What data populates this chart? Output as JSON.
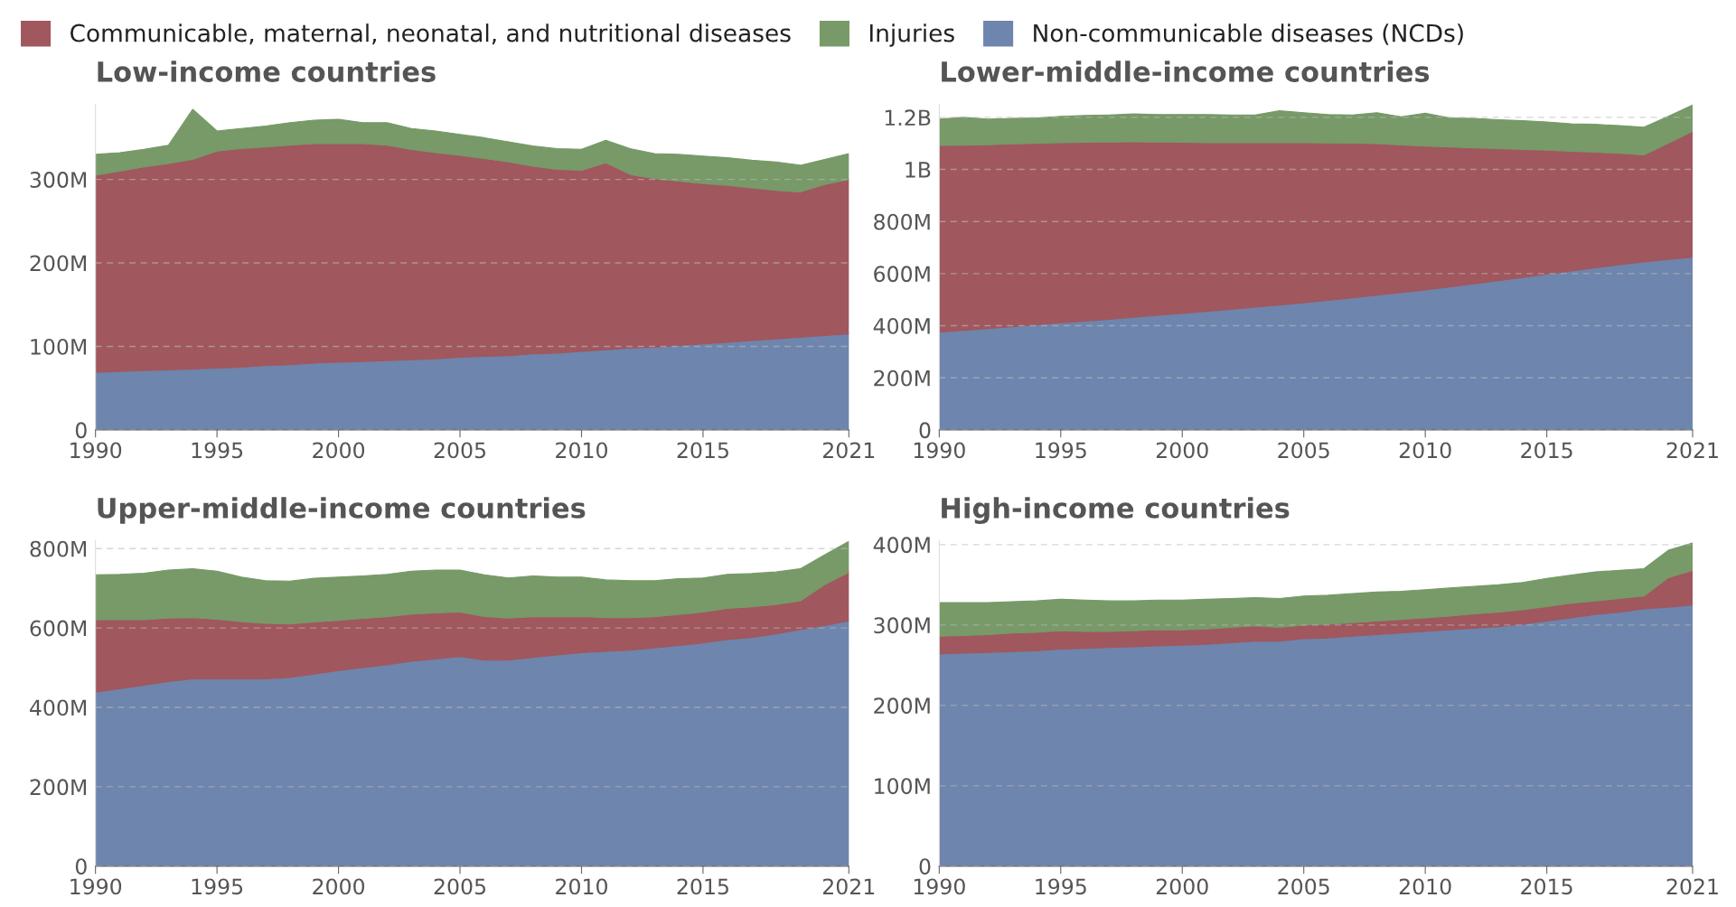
{
  "chart_data": [
    {
      "type": "area",
      "stacked": true,
      "title": "Low-income countries",
      "legend": "top",
      "grid": "y",
      "line_style": "dashed",
      "x": [
        1990,
        1991,
        1992,
        1993,
        1994,
        1995,
        1996,
        1997,
        1998,
        1999,
        2000,
        2001,
        2002,
        2003,
        2004,
        2005,
        2006,
        2007,
        2008,
        2009,
        2010,
        2011,
        2012,
        2013,
        2014,
        2015,
        2016,
        2017,
        2018,
        2019,
        2020,
        2021
      ],
      "xlim": [
        1990,
        2021
      ],
      "xticks": [
        1990,
        1995,
        2000,
        2005,
        2010,
        2015,
        2021
      ],
      "ylim": [
        0,
        390000000.0
      ],
      "yticks": [
        {
          "value": 0,
          "label": "0"
        },
        {
          "value": 100000000.0,
          "label": "100M"
        },
        {
          "value": 200000000.0,
          "label": "200M"
        },
        {
          "value": 300000000.0,
          "label": "300M"
        }
      ],
      "series": [
        {
          "name": "Non-communicable diseases (NCDs)",
          "color": "#6e85ad",
          "values": [
            69000000.0,
            70000000.0,
            71000000.0,
            72000000.0,
            73000000.0,
            74000000.0,
            75000000.0,
            77000000.0,
            78000000.0,
            80000000.0,
            81000000.0,
            82000000.0,
            83000000.0,
            84000000.0,
            85000000.0,
            87000000.0,
            88000000.0,
            89000000.0,
            91000000.0,
            92000000.0,
            94000000.0,
            96000000.0,
            98000000.0,
            99000000.0,
            101000000.0,
            103000000.0,
            105000000.0,
            107000000.0,
            109000000.0,
            111000000.0,
            113000000.0,
            115000000.0
          ]
        },
        {
          "name": "Communicable, maternal, neonatal, and nutritional diseases",
          "color": "#a0575e",
          "values": [
            236000000.0,
            240000000.0,
            244000000.0,
            247000000.0,
            251000000.0,
            260000000.0,
            262000000.0,
            262000000.0,
            263000000.0,
            263000000.0,
            262000000.0,
            261000000.0,
            258000000.0,
            252000000.0,
            247000000.0,
            242000000.0,
            237000000.0,
            232000000.0,
            225000000.0,
            220000000.0,
            217000000.0,
            224000000.0,
            208000000.0,
            202000000.0,
            197000000.0,
            192000000.0,
            188000000.0,
            183000000.0,
            178000000.0,
            174000000.0,
            181000000.0,
            185000000.0
          ]
        },
        {
          "name": "Injuries",
          "color": "#779a68",
          "values": [
            25000000.0,
            22000000.0,
            21000000.0,
            22000000.0,
            60000000.0,
            24000000.0,
            24000000.0,
            25000000.0,
            27000000.0,
            28000000.0,
            29000000.0,
            25000000.0,
            27000000.0,
            25000000.0,
            26000000.0,
            25000000.0,
            25000000.0,
            24000000.0,
            24000000.0,
            25000000.0,
            25000000.0,
            27000000.0,
            31000000.0,
            30000000.0,
            32000000.0,
            33000000.0,
            33000000.0,
            33000000.0,
            34000000.0,
            32000000.0,
            30000000.0,
            31000000.0
          ]
        }
      ]
    },
    {
      "type": "area",
      "stacked": true,
      "title": "Lower-middle-income countries",
      "grid": "y",
      "line_style": "dashed",
      "x": [
        1990,
        1991,
        1992,
        1993,
        1994,
        1995,
        1996,
        1997,
        1998,
        1999,
        2000,
        2001,
        2002,
        2003,
        2004,
        2005,
        2006,
        2007,
        2008,
        2009,
        2010,
        2011,
        2012,
        2013,
        2014,
        2015,
        2016,
        2017,
        2018,
        2019,
        2020,
        2021
      ],
      "xlim": [
        1990,
        2021
      ],
      "xticks": [
        1990,
        1995,
        2000,
        2005,
        2010,
        2015,
        2021
      ],
      "ylim": [
        0,
        1250000000.0
      ],
      "yticks": [
        {
          "value": 0,
          "label": "0"
        },
        {
          "value": 200000000.0,
          "label": "200M"
        },
        {
          "value": 400000000.0,
          "label": "400M"
        },
        {
          "value": 600000000.0,
          "label": "600M"
        },
        {
          "value": 800000000.0,
          "label": "800M"
        },
        {
          "value": 1000000000.0,
          "label": "1B"
        },
        {
          "value": 1200000000.0,
          "label": "1.2B"
        }
      ],
      "series": [
        {
          "color": "#6e85ad",
          "values": [
            375000000.0,
            382000000.0,
            389000000.0,
            396000000.0,
            404000000.0,
            411000000.0,
            418000000.0,
            425000000.0,
            432000000.0,
            440000000.0,
            447000000.0,
            455000000.0,
            463000000.0,
            471000000.0,
            479000000.0,
            488000000.0,
            497000000.0,
            507000000.0,
            517000000.0,
            527000000.0,
            537000000.0,
            549000000.0,
            561000000.0,
            573000000.0,
            585000000.0,
            598000000.0,
            610000000.0,
            622000000.0,
            634000000.0,
            645000000.0,
            654000000.0,
            663000000.0
          ]
        },
        {
          "color": "#a0575e",
          "values": [
            717000000.0,
            711000000.0,
            706000000.0,
            702000000.0,
            696000000.0,
            692000000.0,
            686000000.0,
            680000000.0,
            674000000.0,
            665000000.0,
            657000000.0,
            648000000.0,
            640000000.0,
            632000000.0,
            624000000.0,
            615000000.0,
            605000000.0,
            594000000.0,
            582000000.0,
            567000000.0,
            553000000.0,
            537000000.0,
            522000000.0,
            507000000.0,
            492000000.0,
            476000000.0,
            460000000.0,
            444000000.0,
            428000000.0,
            411000000.0,
            447000000.0,
            483000000.0
          ]
        },
        {
          "color": "#779a68",
          "values": [
            101000000.0,
            107000000.0,
            98000000.0,
            98000000.0,
            98000000.0,
            101000000.0,
            103000000.0,
            104000000.0,
            107000000.0,
            106000000.0,
            107000000.0,
            108000000.0,
            106000000.0,
            106000000.0,
            122000000.0,
            115000000.0,
            109000000.0,
            108000000.0,
            119000000.0,
            108000000.0,
            126000000.0,
            112000000.0,
            113000000.0,
            111000000.0,
            110000000.0,
            108000000.0,
            105000000.0,
            107000000.0,
            106000000.0,
            106000000.0,
            103000000.0,
            101000000.0
          ]
        }
      ]
    },
    {
      "type": "area",
      "stacked": true,
      "title": "Upper-middle-income countries",
      "grid": "y",
      "line_style": "dashed",
      "x": [
        1990,
        1991,
        1992,
        1993,
        1994,
        1995,
        1996,
        1997,
        1998,
        1999,
        2000,
        2001,
        2002,
        2003,
        2004,
        2005,
        2006,
        2007,
        2008,
        2009,
        2010,
        2011,
        2012,
        2013,
        2014,
        2015,
        2016,
        2017,
        2018,
        2019,
        2020,
        2021
      ],
      "xlim": [
        1990,
        2021
      ],
      "xticks": [
        1990,
        1995,
        2000,
        2005,
        2010,
        2015,
        2021
      ],
      "ylim": [
        0,
        820000000.0
      ],
      "yticks": [
        {
          "value": 0,
          "label": "0"
        },
        {
          "value": 200000000.0,
          "label": "200M"
        },
        {
          "value": 400000000.0,
          "label": "400M"
        },
        {
          "value": 600000000.0,
          "label": "600M"
        },
        {
          "value": 800000000.0,
          "label": "800M"
        }
      ],
      "series": [
        {
          "color": "#6e85ad",
          "values": [
            438000000.0,
            447000000.0,
            456000000.0,
            465000000.0,
            472000000.0,
            472000000.0,
            472000000.0,
            472000000.0,
            475000000.0,
            484000000.0,
            493000000.0,
            500000000.0,
            507000000.0,
            516000000.0,
            522000000.0,
            528000000.0,
            519000000.0,
            519000000.0,
            526000000.0,
            532000000.0,
            538000000.0,
            541000000.0,
            544000000.0,
            550000000.0,
            556000000.0,
            562000000.0,
            571000000.0,
            576000000.0,
            585000000.0,
            596000000.0,
            606000000.0,
            618000000.0
          ]
        },
        {
          "color": "#a0575e",
          "values": [
            183000000.0,
            174000000.0,
            165000000.0,
            160000000.0,
            154000000.0,
            150000000.0,
            144000000.0,
            140000000.0,
            135000000.0,
            131000000.0,
            126000000.0,
            124000000.0,
            121000000.0,
            119000000.0,
            116000000.0,
            112000000.0,
            110000000.0,
            106000000.0,
            102000000.0,
            96000000.0,
            91000000.0,
            85000000.0,
            82000000.0,
            78000000.0,
            78000000.0,
            78000000.0,
            78000000.0,
            77000000.0,
            74000000.0,
            72000000.0,
            103000000.0,
            122000000.0
          ]
        },
        {
          "color": "#779a68",
          "values": [
            113000000.0,
            114000000.0,
            117000000.0,
            121000000.0,
            123000000.0,
            121000000.0,
            112000000.0,
            107000000.0,
            108000000.0,
            110000000.0,
            109000000.0,
            107000000.0,
            107000000.0,
            108000000.0,
            108000000.0,
            106000000.0,
            105000000.0,
            101000000.0,
            103000000.0,
            100000000.0,
            99000000.0,
            95000000.0,
            93000000.0,
            91000000.0,
            90000000.0,
            86000000.0,
            86000000.0,
            84000000.0,
            82000000.0,
            81000000.0,
            75000000.0,
            78000000.0
          ]
        }
      ]
    },
    {
      "type": "area",
      "stacked": true,
      "title": "High-income countries",
      "grid": "y",
      "line_style": "dashed",
      "x": [
        1990,
        1991,
        1992,
        1993,
        1994,
        1995,
        1996,
        1997,
        1998,
        1999,
        2000,
        2001,
        2002,
        2003,
        2004,
        2005,
        2006,
        2007,
        2008,
        2009,
        2010,
        2011,
        2012,
        2013,
        2014,
        2015,
        2016,
        2017,
        2018,
        2019,
        2020,
        2021
      ],
      "xlim": [
        1990,
        2021
      ],
      "xticks": [
        1990,
        1995,
        2000,
        2005,
        2010,
        2015,
        2021
      ],
      "ylim": [
        0,
        405000000.0
      ],
      "yticks": [
        {
          "value": 0,
          "label": "0"
        },
        {
          "value": 100000000.0,
          "label": "100M"
        },
        {
          "value": 200000000.0,
          "label": "200M"
        },
        {
          "value": 300000000.0,
          "label": "300M"
        },
        {
          "value": 400000000.0,
          "label": "400M"
        }
      ],
      "series": [
        {
          "color": "#6e85ad",
          "values": [
            264000000.0,
            265000000.0,
            266000000.0,
            267000000.0,
            268000000.0,
            270000000.0,
            271000000.0,
            272000000.0,
            273000000.0,
            274000000.0,
            275000000.0,
            276000000.0,
            278000000.0,
            280000000.0,
            280000000.0,
            283000000.0,
            284000000.0,
            286000000.0,
            288000000.0,
            290000000.0,
            292000000.0,
            294000000.0,
            296000000.0,
            298000000.0,
            301000000.0,
            305000000.0,
            309000000.0,
            313000000.0,
            316000000.0,
            320000000.0,
            322000000.0,
            325000000.0
          ]
        },
        {
          "color": "#a0575e",
          "values": [
            22000000.0,
            22000000.0,
            22000000.0,
            23000000.0,
            23000000.0,
            23000000.0,
            21000000.0,
            20000000.0,
            20000000.0,
            20000000.0,
            19000000.0,
            19000000.0,
            19000000.0,
            19000000.0,
            17000000.0,
            17000000.0,
            17000000.0,
            17000000.0,
            17000000.0,
            17000000.0,
            17000000.0,
            17000000.0,
            18000000.0,
            18000000.0,
            18000000.0,
            18000000.0,
            18000000.0,
            17000000.0,
            17000000.0,
            16000000.0,
            37000000.0,
            43000000.0
          ]
        },
        {
          "color": "#779a68",
          "values": [
            42000000.0,
            41000000.0,
            40000000.0,
            39000000.0,
            39000000.0,
            39000000.0,
            39000000.0,
            38000000.0,
            37000000.0,
            37000000.0,
            37000000.0,
            37000000.0,
            36000000.0,
            35000000.0,
            36000000.0,
            36000000.0,
            36000000.0,
            36000000.0,
            36000000.0,
            35000000.0,
            35000000.0,
            35000000.0,
            34000000.0,
            34000000.0,
            34000000.0,
            35000000.0,
            35000000.0,
            36000000.0,
            35000000.0,
            34000000.0,
            34000000.0,
            34000000.0
          ]
        }
      ]
    }
  ]
}
